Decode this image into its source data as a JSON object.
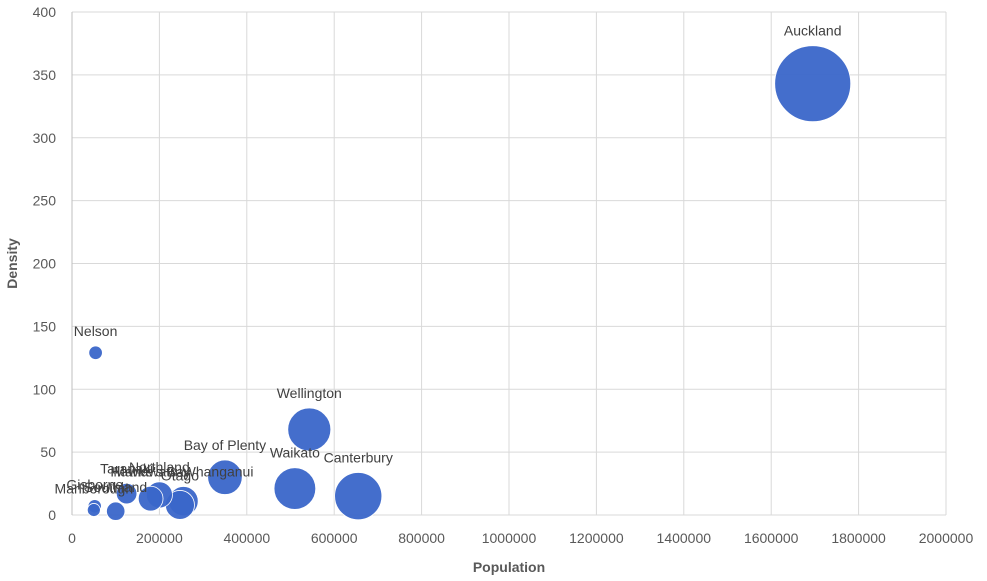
{
  "chart_data": {
    "type": "bubble",
    "xlabel": "Population",
    "ylabel": "Density",
    "xlim": [
      0,
      2000000
    ],
    "ylim": [
      0,
      400
    ],
    "x_ticks": [
      "0",
      "200000",
      "400000",
      "600000",
      "800000",
      "1000000",
      "1200000",
      "1400000",
      "1600000",
      "1800000",
      "2000000"
    ],
    "y_ticks": [
      "0",
      "50",
      "100",
      "150",
      "200",
      "250",
      "300",
      "350",
      "400"
    ],
    "grid": true,
    "bubble_color": "#3a66c9",
    "points": [
      {
        "label": "Auckland",
        "x": 1695000,
        "y": 343,
        "size": 1695000
      },
      {
        "label": "Nelson",
        "x": 54000,
        "y": 129,
        "size": 54000
      },
      {
        "label": "Wellington",
        "x": 543000,
        "y": 68,
        "size": 543000
      },
      {
        "label": "Bay of Plenty",
        "x": 350000,
        "y": 30,
        "size": 350000
      },
      {
        "label": "Waikato",
        "x": 510000,
        "y": 21,
        "size": 510000
      },
      {
        "label": "Canterbury",
        "x": 655000,
        "y": 15,
        "size": 655000
      },
      {
        "label": "Manawatu-Whanganui",
        "x": 255000,
        "y": 11,
        "size": 255000
      },
      {
        "label": "Otago",
        "x": 247000,
        "y": 8,
        "size": 247000
      },
      {
        "label": "Northland",
        "x": 200000,
        "y": 16,
        "size": 200000
      },
      {
        "label": "Hawke's Bay",
        "x": 180000,
        "y": 13,
        "size": 180000
      },
      {
        "label": "Taranaki",
        "x": 125000,
        "y": 17,
        "size": 125000
      },
      {
        "label": "Southland",
        "x": 100000,
        "y": 3,
        "size": 100000
      },
      {
        "label": "Gisborne",
        "x": 52000,
        "y": 7,
        "size": 52000
      },
      {
        "label": "Marlborough",
        "x": 50000,
        "y": 4,
        "size": 50000
      }
    ]
  }
}
